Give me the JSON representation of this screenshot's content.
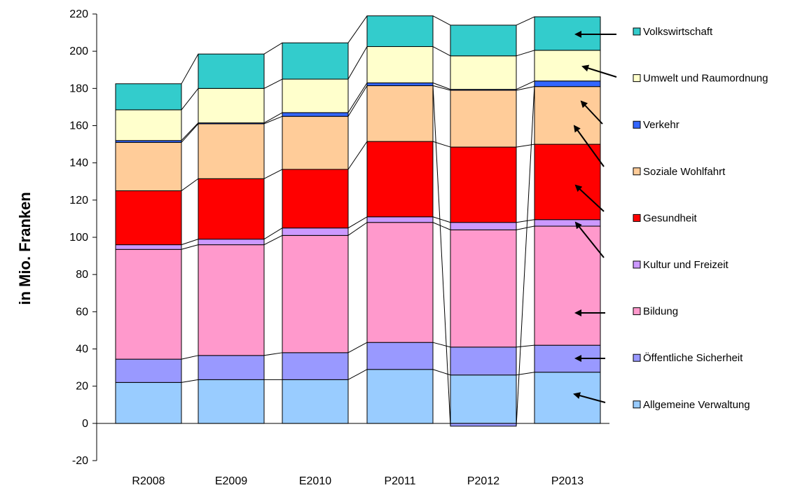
{
  "chart_data": {
    "type": "bar",
    "stacked": true,
    "ylabel": "in Mio. Franken",
    "ylim": [
      -20,
      220
    ],
    "yticks": [
      -20,
      0,
      20,
      40,
      60,
      80,
      100,
      120,
      140,
      160,
      180,
      200,
      220
    ],
    "categories": [
      "R2008",
      "E2009",
      "E2010",
      "P2011",
      "P2012",
      "P2013"
    ],
    "series": [
      {
        "name": "Allgemeine Verwaltung",
        "color": "#99ccff",
        "values": [
          22,
          23.5,
          23.5,
          29,
          26,
          27.5
        ]
      },
      {
        "name": "Öffentliche Sicherheit",
        "color": "#9999ff",
        "values": [
          12.5,
          13,
          14.5,
          14.5,
          15,
          14.5
        ]
      },
      {
        "name": "Bildung",
        "color": "#ff99cc",
        "values": [
          59,
          59.5,
          63,
          64.5,
          63,
          64
        ]
      },
      {
        "name": "Kultur und Freizeit",
        "color": "#cc99ff",
        "values": [
          2.5,
          3,
          4,
          3,
          4,
          3.5
        ]
      },
      {
        "name": "Gesundheit",
        "color": "#ff0000",
        "values": [
          29,
          32.5,
          31.5,
          40.5,
          40.5,
          40.5
        ]
      },
      {
        "name": "Soziale Wohlfahrt",
        "color": "#ffcc99",
        "values": [
          26,
          29.5,
          28.5,
          30,
          30.5,
          31
        ]
      },
      {
        "name": "Verkehr",
        "color": "#3366ff",
        "values": [
          1,
          0.5,
          2,
          1.5,
          0.5,
          3
        ]
      },
      {
        "name": "Umwelt und Raumordnung",
        "color": "#ffffcc",
        "values": [
          16.5,
          18.5,
          18,
          19.5,
          18,
          16.5
        ]
      },
      {
        "name": "Volkswirtschaft",
        "color": "#33cccc",
        "values": [
          14,
          18.5,
          19.5,
          16.5,
          16.5,
          18
        ]
      }
    ],
    "p2012_allgemeine_verwaltung_below_zero": -1.5,
    "legend_position": "right",
    "legend_order": [
      "Volkswirtschaft",
      "Umwelt und Raumordnung",
      "Verkehr",
      "Soziale Wohlfahrt",
      "Gesundheit",
      "Kultur und Freizeit",
      "Bildung",
      "Öffentliche Sicherheit",
      "Allgemeine Verwaltung"
    ],
    "grid": false
  }
}
